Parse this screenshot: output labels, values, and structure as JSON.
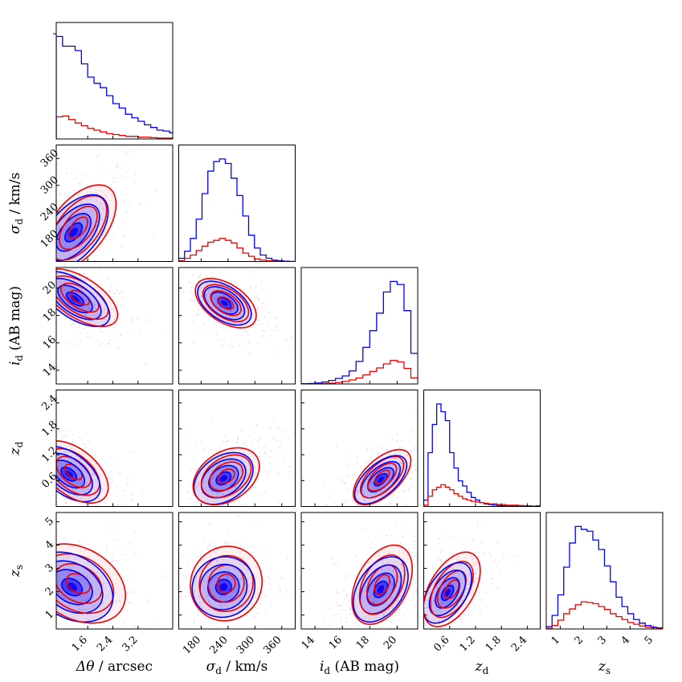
{
  "chart_data": {
    "type": "corner",
    "title": "",
    "colors": {
      "blue": "#0000ff",
      "red": "#ee0000"
    },
    "series": [
      {
        "name": "blue",
        "color": "#0000ff"
      },
      {
        "name": "red",
        "color": "#ee0000"
      }
    ],
    "variables": [
      {
        "id": "dtheta",
        "label_main": "Δθ",
        "label_unit": " / arcsec",
        "range": [
          0.6,
          4.3
        ],
        "ticks": [
          1.6,
          2.4,
          3.2
        ],
        "tick_labels": [
          "1.6",
          "2.4",
          "3.2"
        ],
        "bin_width": 0.2,
        "hist": {
          "blue": [
            11.6,
            10.5,
            10.5,
            10.0,
            8.5,
            7.0,
            6.3,
            5.8,
            4.9,
            4.0,
            3.5,
            2.8,
            2.4,
            2.0,
            1.6,
            1.3,
            1.0,
            0.9,
            0.7
          ],
          "red": [
            2.5,
            2.6,
            2.2,
            1.8,
            1.5,
            1.2,
            1.0,
            0.8,
            0.6,
            0.5,
            0.4,
            0.3,
            0.3,
            0.2,
            0.2,
            0.15,
            0.1,
            0.1,
            0.1
          ]
        }
      },
      {
        "id": "sigma",
        "label_main": "σ",
        "label_sub": "d",
        "label_unit": " / km/s",
        "range": [
          130,
          390
        ],
        "ticks": [
          180,
          240,
          300,
          360
        ],
        "tick_labels": [
          "180",
          "240",
          "300",
          "360"
        ],
        "bin_width": 13,
        "hist": {
          "blue": [
            0.5,
            1.6,
            3.6,
            6.6,
            10.6,
            14.1,
            15.6,
            16.0,
            15.3,
            13.0,
            10.3,
            7.1,
            4.1,
            2.1,
            1.0,
            0.5,
            0.2,
            0.1,
            0.05,
            0.0
          ],
          "red": [
            0.1,
            0.5,
            1.0,
            1.7,
            2.4,
            3.0,
            3.3,
            3.6,
            3.3,
            2.9,
            2.1,
            1.3,
            0.8,
            0.4,
            0.2,
            0.1,
            0.05,
            0.0,
            0.0,
            0.0
          ]
        }
      },
      {
        "id": "imag",
        "label_main": "i",
        "label_sub": "d",
        "label_unit": " (AB mag)",
        "range": [
          13,
          21.5
        ],
        "ticks": [
          14,
          16,
          18,
          20
        ],
        "tick_labels": [
          "14",
          "16",
          "18",
          "20"
        ],
        "bin_width": 0.5,
        "hist": {
          "blue": [
            0.05,
            0.1,
            0.2,
            0.4,
            0.7,
            1.1,
            1.6,
            2.6,
            4.5,
            7.3,
            10.6,
            14.1,
            18.3,
            20.4,
            19.8,
            14.6,
            6.1
          ],
          "red": [
            0.0,
            0.0,
            0.05,
            0.1,
            0.15,
            0.3,
            0.5,
            0.8,
            1.2,
            1.8,
            2.5,
            3.2,
            4.0,
            4.7,
            4.4,
            3.1,
            1.2
          ]
        }
      },
      {
        "id": "zd",
        "label_main": "z",
        "label_sub": "d",
        "label_unit": "",
        "range": [
          0.0,
          2.7
        ],
        "ticks": [
          0.6,
          1.2,
          1.8,
          2.4
        ],
        "tick_labels": [
          "0.6",
          "1.2",
          "1.8",
          "2.4"
        ],
        "bin_width": 0.1,
        "hist": {
          "blue": [
            0.5,
            4.2,
            6.4,
            8.0,
            7.4,
            6.7,
            4.2,
            3.0,
            2.0,
            1.6,
            1.1,
            0.7,
            0.5,
            0.3,
            0.2,
            0.15,
            0.1,
            0.08,
            0.05,
            0.04,
            0.03,
            0.02,
            0.01,
            0.01,
            0.01,
            0.0,
            0.0
          ],
          "red": [
            0.1,
            0.8,
            1.3,
            1.5,
            1.7,
            1.5,
            1.3,
            1.0,
            0.8,
            0.6,
            0.5,
            0.4,
            0.35,
            0.3,
            0.25,
            0.2,
            0.2,
            0.15,
            0.15,
            0.1,
            0.1,
            0.1,
            0.08,
            0.05,
            0.05,
            0.03,
            0.05
          ]
        }
      },
      {
        "id": "zs",
        "label_main": "z",
        "label_sub": "s",
        "label_unit": "",
        "range": [
          0.4,
          5.4
        ],
        "ticks": [
          1,
          2,
          3,
          4,
          5
        ],
        "tick_labels": [
          "1",
          "2",
          "3",
          "4",
          "5"
        ],
        "bin_width": 0.25,
        "hist": {
          "blue": [
            0.4,
            2.3,
            5.8,
            10.5,
            14.6,
            17.4,
            16.9,
            16.6,
            15.1,
            13.5,
            10.7,
            8.0,
            5.4,
            3.8,
            2.6,
            1.6,
            1.0,
            0.6,
            0.3,
            0.2
          ],
          "red": [
            0.1,
            0.6,
            1.5,
            2.6,
            3.4,
            4.1,
            4.6,
            4.5,
            4.3,
            3.8,
            3.3,
            2.6,
            2.1,
            1.6,
            1.1,
            0.8,
            0.5,
            0.3,
            0.2,
            0.1
          ]
        }
      }
    ],
    "pairs": [
      {
        "x": "dtheta",
        "y": "sigma",
        "blue": {
          "cx": 1.15,
          "cy": 195,
          "sx": 0.55,
          "sy": 42,
          "rho": 0.55
        },
        "red": {
          "cx": 1.3,
          "cy": 205,
          "sx": 0.6,
          "sy": 48,
          "rho": 0.55
        }
      },
      {
        "x": "dtheta",
        "y": "imag",
        "blue": {
          "cx": 1.2,
          "cy": 19.2,
          "sx": 0.55,
          "sy": 1.0,
          "rho": -0.6
        },
        "red": {
          "cx": 1.35,
          "cy": 19.3,
          "sx": 0.6,
          "sy": 1.05,
          "rho": -0.6
        }
      },
      {
        "x": "dtheta",
        "y": "zd",
        "blue": {
          "cx": 1.0,
          "cy": 0.75,
          "sx": 0.5,
          "sy": 0.32,
          "rho": -0.5
        },
        "red": {
          "cx": 1.15,
          "cy": 0.8,
          "sx": 0.55,
          "sy": 0.36,
          "rho": -0.5
        }
      },
      {
        "x": "dtheta",
        "y": "zs",
        "blue": {
          "cx": 1.1,
          "cy": 2.2,
          "sx": 0.65,
          "sy": 0.75,
          "rho": -0.3
        },
        "red": {
          "cx": 1.3,
          "cy": 2.35,
          "sx": 0.75,
          "sy": 0.85,
          "rho": -0.3
        }
      },
      {
        "x": "sigma",
        "y": "imag",
        "blue": {
          "cx": 232,
          "cy": 18.9,
          "sx": 30,
          "sy": 0.8,
          "rho": -0.5
        },
        "red": {
          "cx": 235,
          "cy": 18.9,
          "sx": 34,
          "sy": 0.9,
          "rho": -0.5
        }
      },
      {
        "x": "sigma",
        "y": "zd",
        "blue": {
          "cx": 230,
          "cy": 0.65,
          "sx": 33,
          "sy": 0.3,
          "rho": 0.35
        },
        "red": {
          "cx": 236,
          "cy": 0.7,
          "sx": 37,
          "sy": 0.33,
          "rho": 0.35
        }
      },
      {
        "x": "sigma",
        "y": "zs",
        "blue": {
          "cx": 230,
          "cy": 2.2,
          "sx": 35,
          "sy": 0.65,
          "rho": 0.05
        },
        "red": {
          "cx": 236,
          "cy": 2.35,
          "sx": 40,
          "sy": 0.8,
          "rho": 0.05
        }
      },
      {
        "x": "imag",
        "y": "zd",
        "blue": {
          "cx": 18.8,
          "cy": 0.62,
          "sx": 0.95,
          "sy": 0.28,
          "rho": 0.6
        },
        "red": {
          "cx": 18.9,
          "cy": 0.68,
          "sx": 1.05,
          "sy": 0.32,
          "rho": 0.6
        }
      },
      {
        "x": "imag",
        "y": "zs",
        "blue": {
          "cx": 18.8,
          "cy": 2.1,
          "sx": 1.0,
          "sy": 0.7,
          "rho": 0.4
        },
        "red": {
          "cx": 18.9,
          "cy": 2.3,
          "sx": 1.1,
          "sy": 0.85,
          "rho": 0.4
        }
      },
      {
        "x": "zd",
        "y": "zs",
        "blue": {
          "cx": 0.55,
          "cy": 1.95,
          "sx": 0.28,
          "sy": 0.65,
          "rho": 0.5
        },
        "red": {
          "cx": 0.65,
          "cy": 2.1,
          "sx": 0.33,
          "sy": 0.8,
          "rho": 0.5
        }
      }
    ],
    "contour_levels_sigma": [
      0.5,
      1.0,
      1.5,
      2.0
    ],
    "grid": false,
    "legend": "none"
  }
}
